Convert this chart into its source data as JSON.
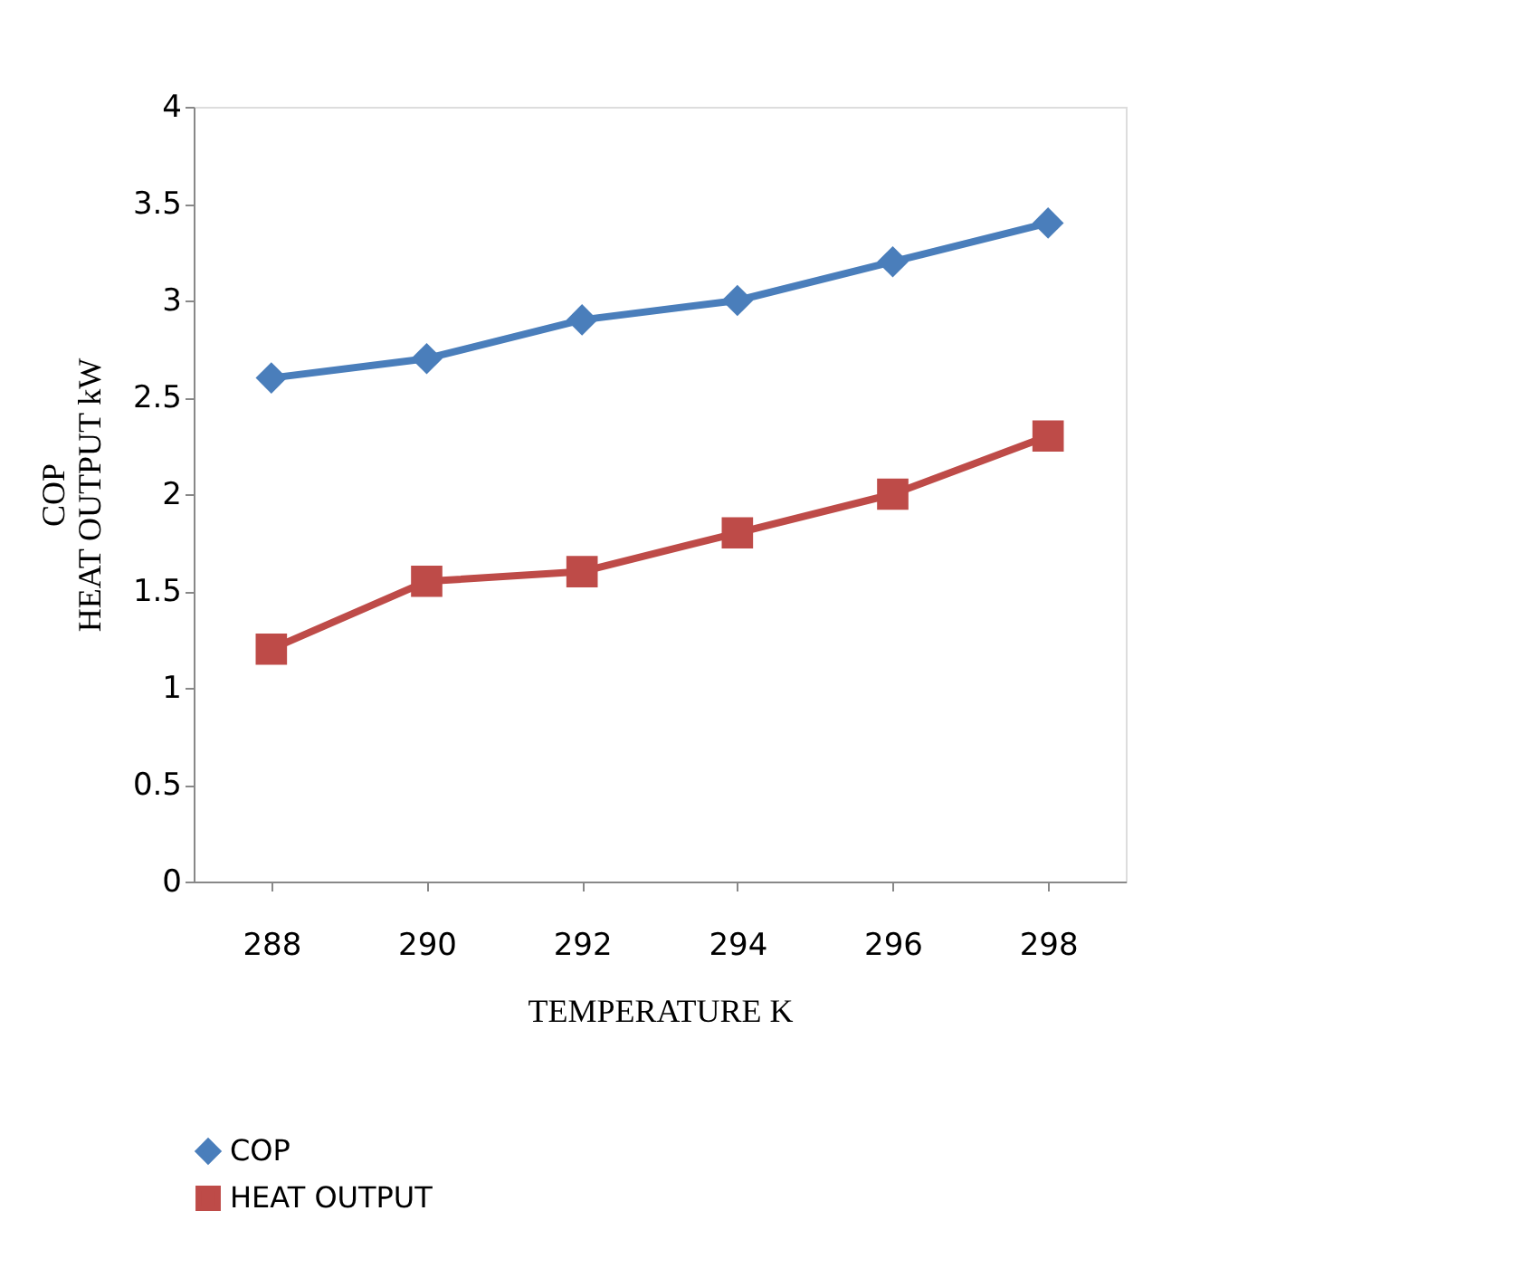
{
  "chart_data": {
    "type": "line",
    "xlabel": "TEMPERATURE K",
    "ylabel": "COP\nHEAT OUTPUT kW",
    "categories": [
      "288",
      "290",
      "292",
      "294",
      "296",
      "298"
    ],
    "series": [
      {
        "name": "COP",
        "color": "#4a7ebb",
        "values": [
          2.6,
          2.7,
          2.9,
          3.0,
          3.2,
          3.4
        ],
        "marker": "diamond"
      },
      {
        "name": "HEAT OUTPUT",
        "color": "#be4b48",
        "values": [
          1.2,
          1.55,
          1.6,
          1.8,
          2.0,
          2.3
        ],
        "marker": "square"
      }
    ],
    "ylim": [
      0,
      4
    ],
    "yticks": [
      0,
      0.5,
      1,
      1.5,
      2,
      2.5,
      3,
      3.5,
      4
    ],
    "grid": false,
    "legend": "bottom left",
    "line_style": "solid"
  }
}
